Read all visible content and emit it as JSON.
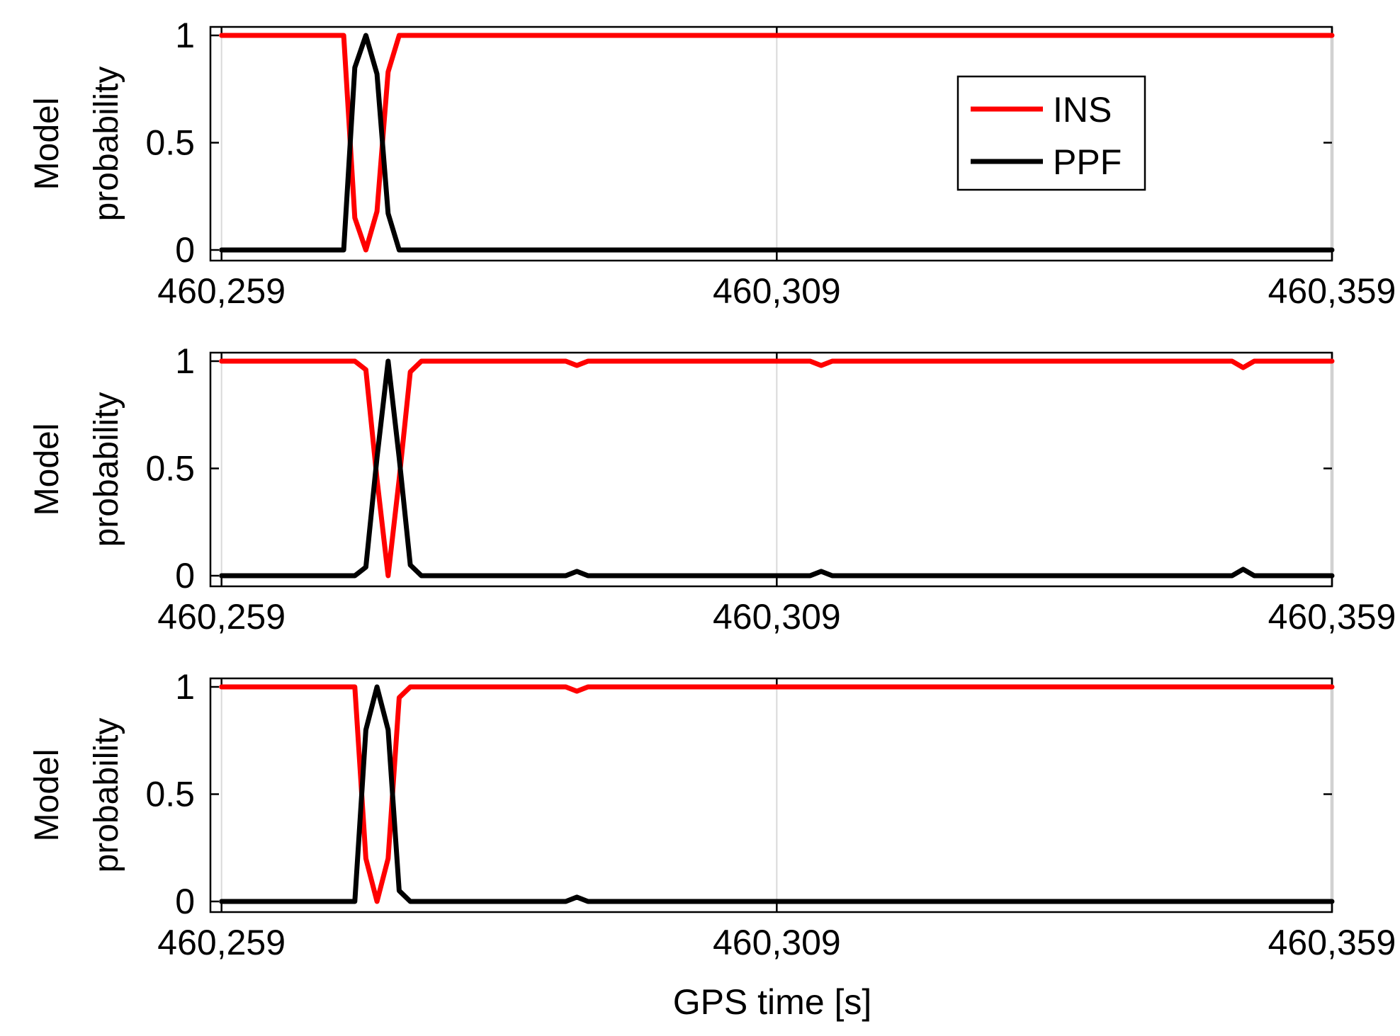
{
  "colors": {
    "INS": "#ff0000",
    "PPF": "#000000",
    "background": "#ffffff",
    "axes": "#000000"
  },
  "xlabel": "GPS time [s]",
  "legend": {
    "entries": [
      "INS",
      "PPF"
    ],
    "placement": "top-right (first subplot)"
  },
  "chart_data": [
    {
      "type": "line",
      "ylabel": [
        "Model",
        "probability"
      ],
      "xlim": [
        460258,
        460359
      ],
      "ylim": [
        0,
        1
      ],
      "xticks": [
        460259,
        460309,
        460359
      ],
      "xtick_labels": [
        "460,259",
        "460,309",
        "460,359"
      ],
      "yticks": [
        0,
        0.5,
        1
      ],
      "ytick_labels": [
        "0",
        "0.5",
        "1"
      ],
      "grid": "vertical at x ticks",
      "legend": true,
      "series": [
        {
          "name": "INS",
          "x": [
            460259,
            460270,
            460271,
            460272,
            460273,
            460274,
            460275,
            460276,
            460359
          ],
          "y": [
            1,
            1,
            0.15,
            0,
            0.18,
            0.83,
            1,
            1,
            1
          ]
        },
        {
          "name": "PPF",
          "x": [
            460259,
            460270,
            460271,
            460272,
            460273,
            460274,
            460275,
            460276,
            460359
          ],
          "y": [
            0,
            0,
            0.85,
            1,
            0.82,
            0.17,
            0,
            0,
            0
          ]
        }
      ]
    },
    {
      "type": "line",
      "ylabel": [
        "Model",
        "probability"
      ],
      "xlim": [
        460258,
        460359
      ],
      "ylim": [
        0,
        1
      ],
      "xticks": [
        460259,
        460309,
        460359
      ],
      "xtick_labels": [
        "460,259",
        "460,309",
        "460,359"
      ],
      "yticks": [
        0,
        0.5,
        1
      ],
      "ytick_labels": [
        "0",
        "0.5",
        "1"
      ],
      "grid": "vertical at x ticks",
      "legend": false,
      "series": [
        {
          "name": "INS",
          "x": [
            460259,
            460271,
            460272,
            460273,
            460274,
            460275,
            460276,
            460277,
            460290,
            460291,
            460292,
            460312,
            460313,
            460314,
            460350,
            460351,
            460352,
            460359
          ],
          "y": [
            1,
            1,
            0.96,
            0.45,
            0,
            0.45,
            0.95,
            1,
            1,
            0.98,
            1,
            1,
            0.98,
            1,
            1,
            0.97,
            1,
            1
          ]
        },
        {
          "name": "PPF",
          "x": [
            460259,
            460271,
            460272,
            460273,
            460274,
            460275,
            460276,
            460277,
            460290,
            460291,
            460292,
            460312,
            460313,
            460314,
            460350,
            460351,
            460352,
            460359
          ],
          "y": [
            0,
            0,
            0.04,
            0.55,
            1,
            0.55,
            0.05,
            0,
            0,
            0.02,
            0,
            0,
            0.02,
            0,
            0,
            0.03,
            0,
            0
          ]
        }
      ]
    },
    {
      "type": "line",
      "ylabel": [
        "Model",
        "probability"
      ],
      "xlim": [
        460258,
        460359
      ],
      "ylim": [
        0,
        1
      ],
      "xticks": [
        460259,
        460309,
        460359
      ],
      "xtick_labels": [
        "460,259",
        "460,309",
        "460,359"
      ],
      "yticks": [
        0,
        0.5,
        1
      ],
      "ytick_labels": [
        "0",
        "0.5",
        "1"
      ],
      "grid": "vertical at x ticks",
      "legend": false,
      "series": [
        {
          "name": "INS",
          "x": [
            460259,
            460271,
            460272,
            460273,
            460274,
            460275,
            460276,
            460277,
            460290,
            460291,
            460292,
            460359
          ],
          "y": [
            1,
            1,
            0.2,
            0,
            0.2,
            0.95,
            1,
            1,
            1,
            0.98,
            1,
            1
          ]
        },
        {
          "name": "PPF",
          "x": [
            460259,
            460271,
            460272,
            460273,
            460274,
            460275,
            460276,
            460277,
            460290,
            460291,
            460292,
            460359
          ],
          "y": [
            0,
            0,
            0.8,
            1,
            0.8,
            0.05,
            0,
            0,
            0,
            0.02,
            0,
            0
          ]
        }
      ]
    }
  ]
}
